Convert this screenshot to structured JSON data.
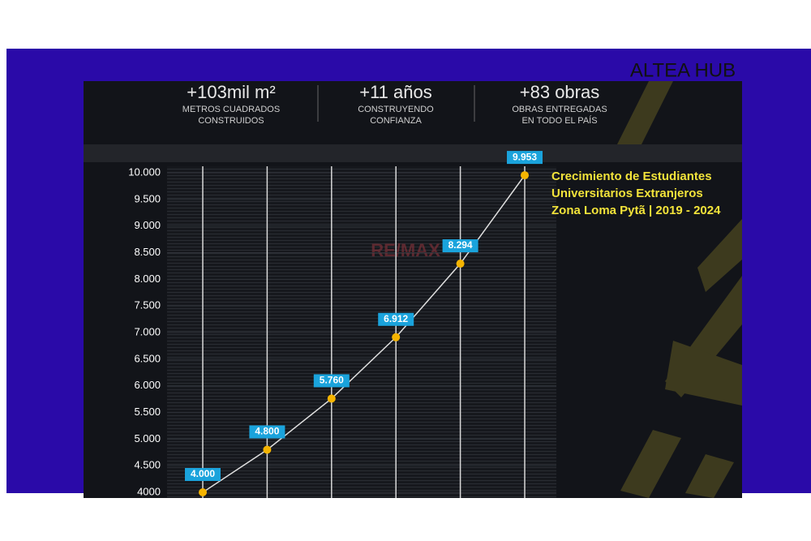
{
  "brand": "ALTEA HUB",
  "stats": [
    {
      "value": "+103mil m²",
      "label_lines": [
        "METROS CUADRADOS",
        "CONSTRUIDOS"
      ]
    },
    {
      "value": "+11 años",
      "label_lines": [
        "CONSTRUYENDO",
        "CONFIANZA"
      ]
    },
    {
      "value": "+83 obras",
      "label_lines": [
        "OBRAS ENTREGADAS",
        "EN TODO EL PAÍS"
      ]
    }
  ],
  "watermark": "RE/MAX",
  "chart_data": {
    "type": "line",
    "title": [
      "Crecimiento de Estudiantes",
      "Universitarios Extranjeros",
      "Zona Loma Pytã | 2019 - 2024"
    ],
    "categories": [
      null,
      null,
      null,
      null,
      null,
      null
    ],
    "values": [
      4000,
      4800,
      5760,
      6912,
      8294,
      9953
    ],
    "value_labels": [
      "4.000",
      "4.800",
      "5.760",
      "6.912",
      "8.294",
      "9.953"
    ],
    "color": "#f5b400",
    "ylim": [
      4000,
      10000
    ],
    "yticks": [
      {
        "value": 4000,
        "label": "4000"
      },
      {
        "value": 4500,
        "label": "4.500"
      },
      {
        "value": 5000,
        "label": "5.000"
      },
      {
        "value": 5500,
        "label": "5.500"
      },
      {
        "value": 6000,
        "label": "6.000"
      },
      {
        "value": 6500,
        "label": "6.500"
      },
      {
        "value": 7000,
        "label": "7.000"
      },
      {
        "value": 7500,
        "label": "7.500"
      },
      {
        "value": 8000,
        "label": "8.000"
      },
      {
        "value": 8500,
        "label": "8.500"
      },
      {
        "value": 9000,
        "label": "9.000"
      },
      {
        "value": 9500,
        "label": "9.500"
      },
      {
        "value": 10000,
        "label": "10.000"
      }
    ],
    "grid": true
  }
}
